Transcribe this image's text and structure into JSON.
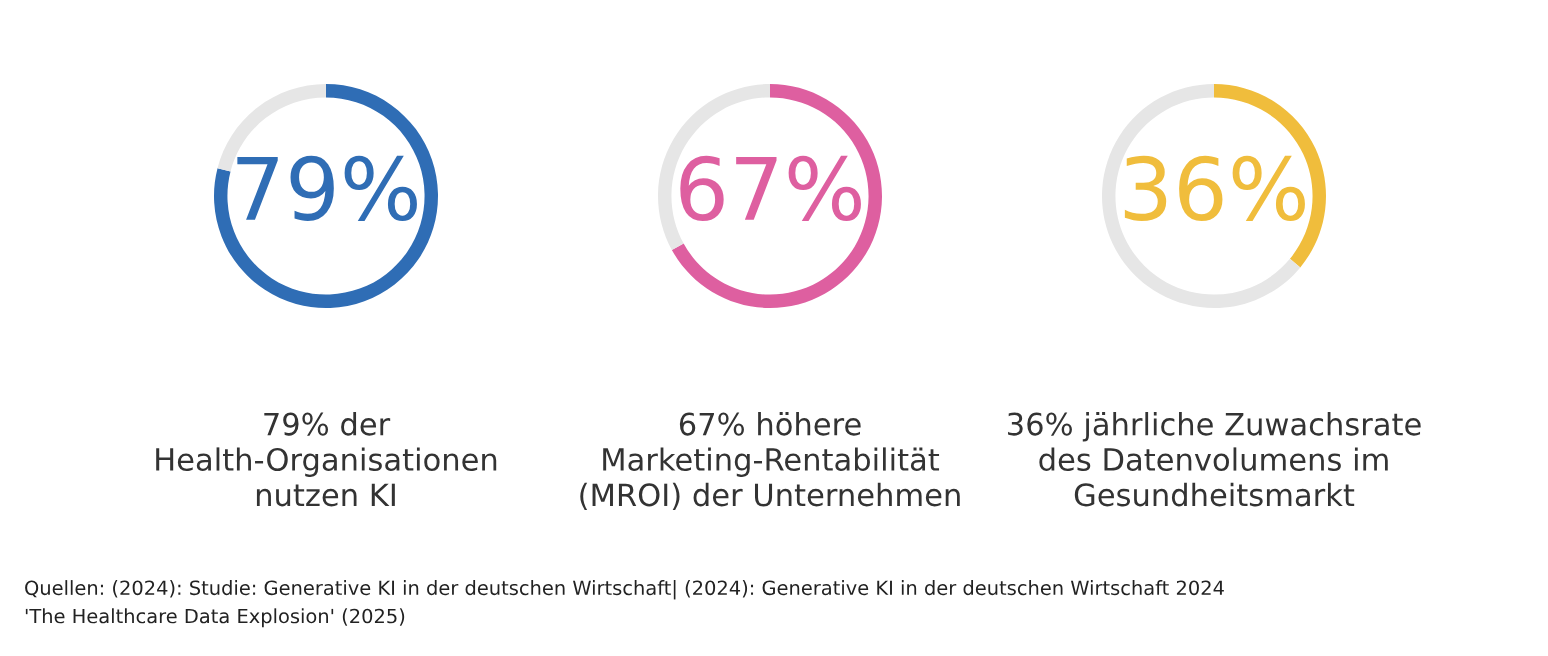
{
  "chart_data": [
    {
      "type": "donut",
      "categories": [
        null,
        null
      ],
      "values": [
        79,
        21
      ],
      "colors": [
        "#2f6db5",
        "#e6e6e6"
      ],
      "value_labels": [
        "79%",
        null
      ],
      "annotations": [
        "79% der\nHealth-Organisationen\nnutzen KI",
        "Quellen: (2024): Studie: Generative KI in der deutschen Wirtschaft| (2024): Generative KI in der deutschen Wirtschaft 2024\n'The Healthcare Data Explosion' (2025)"
      ]
    },
    {
      "type": "donut",
      "categories": [
        null,
        null
      ],
      "values": [
        67,
        33
      ],
      "colors": [
        "#de5fa0",
        "#e6e6e6"
      ],
      "value_labels": [
        "67%",
        null
      ],
      "annotations": [
        "67% höhere\nMarketing-Rentabilität\n(MROI) der Unternehmen"
      ]
    },
    {
      "type": "donut",
      "categories": [
        null,
        null
      ],
      "values": [
        36,
        64
      ],
      "colors": [
        "#f0bd3c",
        "#e6e6e6"
      ],
      "value_labels": [
        "36%",
        null
      ],
      "annotations": [
        "36% jährliche Zuwachsrate\ndes Datenvolumens im\nGesundheitsmarkt"
      ]
    }
  ]
}
